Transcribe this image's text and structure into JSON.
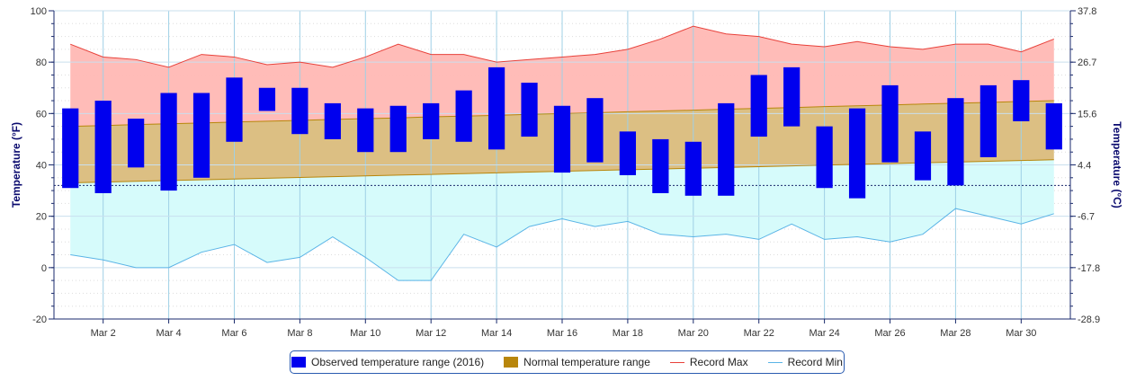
{
  "chart_data": {
    "type": "range-bar-area",
    "x_labels": [
      "Mar 2",
      "Mar 4",
      "Mar 6",
      "Mar 8",
      "Mar 10",
      "Mar 12",
      "Mar 14",
      "Mar 16",
      "Mar 18",
      "Mar 20",
      "Mar 22",
      "Mar 24",
      "Mar 26",
      "Mar 28",
      "Mar 30"
    ],
    "days": [
      1,
      2,
      3,
      4,
      5,
      6,
      7,
      8,
      9,
      10,
      11,
      12,
      13,
      14,
      15,
      16,
      17,
      18,
      19,
      20,
      21,
      22,
      23,
      24,
      25,
      26,
      27,
      28,
      29,
      30,
      31
    ],
    "observed_low": [
      31,
      29,
      39,
      30,
      35,
      49,
      61,
      52,
      50,
      45,
      45,
      50,
      49,
      46,
      51,
      37,
      41,
      36,
      29,
      28,
      28,
      51,
      55,
      31,
      27,
      41,
      34,
      32,
      43,
      57,
      46
    ],
    "observed_high": [
      62,
      65,
      58,
      68,
      68,
      74,
      70,
      70,
      64,
      62,
      63,
      64,
      69,
      78,
      72,
      63,
      66,
      53,
      50,
      49,
      64,
      75,
      78,
      55,
      62,
      71,
      53,
      66,
      71,
      73,
      64
    ],
    "normal_low": [
      33,
      33.3,
      33.6,
      33.9,
      34.2,
      34.5,
      34.8,
      35.1,
      35.4,
      35.7,
      36,
      36.3,
      36.6,
      36.9,
      37.2,
      37.5,
      37.8,
      38.1,
      38.4,
      38.7,
      39,
      39.3,
      39.6,
      39.9,
      40.2,
      40.5,
      40.8,
      41.1,
      41.4,
      41.7,
      42
    ],
    "normal_high": [
      55,
      55.3,
      55.7,
      56,
      56.3,
      56.7,
      57,
      57.3,
      57.7,
      58,
      58.3,
      58.7,
      59,
      59.3,
      59.7,
      60,
      60.3,
      60.7,
      61,
      61.3,
      61.7,
      62,
      62.3,
      62.7,
      63,
      63.3,
      63.7,
      64,
      64.3,
      64.7,
      65
    ],
    "record_max": [
      87,
      82,
      81,
      78,
      83,
      82,
      79,
      80,
      78,
      82,
      87,
      83,
      83,
      80,
      81,
      82,
      83,
      85,
      89,
      94,
      91,
      90,
      87,
      86,
      88,
      86,
      85,
      87,
      87,
      84,
      89
    ],
    "record_min": [
      5,
      3,
      0,
      0,
      6,
      9,
      2,
      4,
      12,
      4,
      -5,
      -5,
      13,
      8,
      16,
      19,
      16,
      18,
      13,
      12,
      13,
      11,
      17,
      11,
      12,
      10,
      13,
      23,
      20,
      17,
      21
    ],
    "y_left": {
      "title": "Temperature (°F)",
      "min": -20,
      "max": 100,
      "ticks": [
        -20,
        0,
        20,
        40,
        60,
        80,
        100
      ]
    },
    "y_right": {
      "title": "Temperature (°C)",
      "ticks": [
        -28.9,
        -17.8,
        -6.7,
        4.4,
        15.6,
        26.7,
        37.8
      ]
    },
    "freezing_line": 32,
    "grid": true,
    "legend_position": "bottom",
    "series": [
      {
        "name": "Observed temperature range (2016)",
        "color": "#0000ee"
      },
      {
        "name": "Normal temperature range",
        "color": "#b8860b"
      },
      {
        "name": "Record Max",
        "color": "#e8413a"
      },
      {
        "name": "Record Min",
        "color": "#5ab4e6"
      }
    ]
  }
}
